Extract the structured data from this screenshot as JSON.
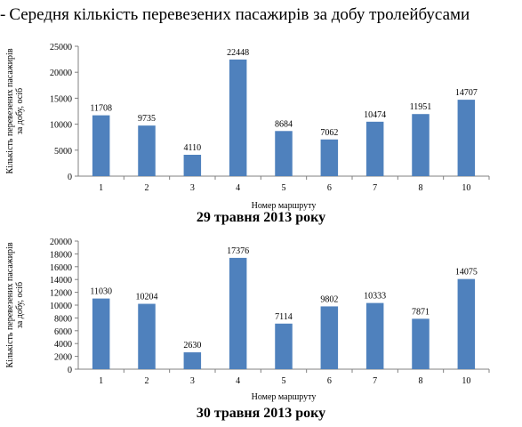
{
  "page_title": "Середня кількість перевезених пасажирів за добу тролейбусами",
  "colors": {
    "bar": "#4f81bd",
    "axis": "#808080",
    "grid": "#d9d9d9"
  },
  "chart_data": [
    {
      "type": "bar",
      "title": "29 травня 2013 року",
      "xlabel": "Номер маршруту",
      "ylabel": "Кількість перевезених пасажирів за добу, осіб",
      "categories": [
        "1",
        "2",
        "3",
        "4",
        "5",
        "6",
        "7",
        "8",
        "10"
      ],
      "values": [
        11708,
        9735,
        4110,
        22448,
        8684,
        7062,
        10474,
        11951,
        14707
      ],
      "ylim": [
        0,
        25000
      ],
      "yticks": [
        0,
        5000,
        10000,
        15000,
        20000,
        25000
      ],
      "grid": false,
      "legend": "none"
    },
    {
      "type": "bar",
      "title": "30 травня 2013 року",
      "xlabel": "Номер маршруту",
      "ylabel": "Кількість перевезених пасажирів за добу, осіб",
      "categories": [
        "1",
        "2",
        "3",
        "4",
        "5",
        "6",
        "7",
        "8",
        "10"
      ],
      "values": [
        11030,
        10204,
        2630,
        17376,
        7114,
        9802,
        10333,
        7871,
        14075
      ],
      "ylim": [
        0,
        20000
      ],
      "yticks": [
        0,
        2000,
        4000,
        6000,
        8000,
        10000,
        12000,
        14000,
        16000,
        18000,
        20000
      ],
      "grid": false,
      "legend": "none"
    }
  ]
}
